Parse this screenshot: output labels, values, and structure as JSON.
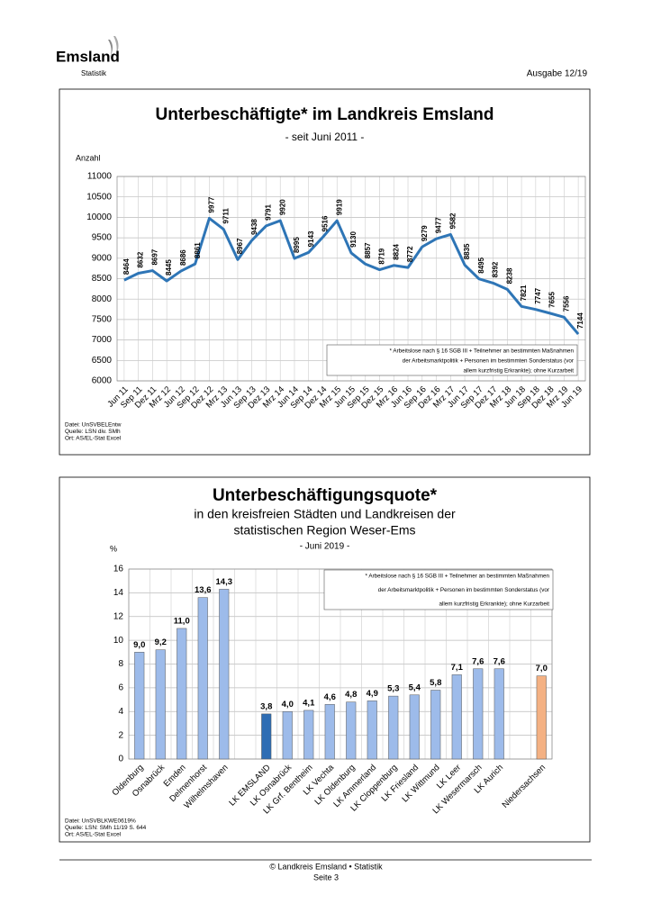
{
  "header": {
    "logo": "Emsland",
    "department": "Statistik",
    "issue": "Ausgabe 12/19"
  },
  "chart_data": [
    {
      "type": "line",
      "title": "Unterbeschäftigte* im Landkreis Emsland",
      "subtitle": [
        "- seit Juni 2011 -"
      ],
      "ylabel": "Anzahl",
      "categories": [
        "Jun 11",
        "Sep 11",
        "Dez 11",
        "Mrz 12",
        "Jun 12",
        "Sep 12",
        "Dez 12",
        "Mrz 13",
        "Jun 13",
        "Sep 13",
        "Dez 13",
        "Mrz 14",
        "Jun 14",
        "Sep 14",
        "Dez 14",
        "Mrz 15",
        "Jun 15",
        "Sep 15",
        "Dez 15",
        "Mrz 16",
        "Jun 16",
        "Sep 16",
        "Dez 16",
        "Mrz 17",
        "Jun 17",
        "Sep 17",
        "Dez 17",
        "Mrz 18",
        "Jun 18",
        "Sep 18",
        "Dez 18",
        "Mrz 19",
        "Jun 19"
      ],
      "values": [
        8464,
        8632,
        8697,
        8445,
        8686,
        8861,
        9977,
        9711,
        8967,
        9438,
        9791,
        9920,
        8995,
        9143,
        9516,
        9919,
        9130,
        8857,
        8719,
        8824,
        8772,
        9279,
        9477,
        9582,
        8835,
        8495,
        8392,
        8238,
        7821,
        7747,
        7655,
        7556,
        7144
      ],
      "color": "#2e75b6",
      "ylim": [
        6000,
        11000
      ],
      "yticks": [
        6000,
        6500,
        7000,
        7500,
        8000,
        8500,
        9000,
        9500,
        10000,
        10500,
        11000
      ],
      "grid": true,
      "note": [
        "* Arbeitslose nach § 16 SGB III + Teilnehmer an bestimmten Maßnahmen",
        "der Arbeitsmarktpolitik + Personen im bestimmten Sonderstatus (vor",
        "allem kurzfristig Erkrankte); ohne Kurzarbeit"
      ],
      "source": [
        "Datei: UnSVBELEntw",
        "Quelle: LSN div. SMh",
        "Ort: AS/EL-Stat Excel"
      ]
    },
    {
      "type": "bar",
      "title": "Unterbeschäftigungsquote*",
      "subtitle": [
        "in den kreisfreien Städten und Landkreisen der",
        "statistischen Region Weser-Ems",
        "- Juni 2019 -"
      ],
      "ylabel": "%",
      "categories": [
        "Oldenburg",
        "Osnabrück",
        "Emden",
        "Delmenhorst",
        "Wilhelmshaven",
        null,
        "LK EMSLAND",
        "LK Osnabrück",
        "LK Grf. Bentheim",
        "LK Vechta",
        "LK Oldenburg",
        "LK Ammerland",
        "LK Cloppenburg",
        "LK Friesland",
        "LK Wittmund",
        "LK Leer",
        "LK Wesermarsch",
        "LK Aurich",
        null,
        "Niedersachsen"
      ],
      "values": [
        9.0,
        9.2,
        11.0,
        13.6,
        14.3,
        null,
        3.8,
        4.0,
        4.1,
        4.6,
        4.8,
        4.9,
        5.3,
        5.4,
        5.8,
        7.1,
        7.6,
        7.6,
        null,
        7.0
      ],
      "value_labels": [
        "9,0",
        "9,2",
        "11,0",
        "13,6",
        "14,3",
        null,
        "3,8",
        "4,0",
        "4,1",
        "4,6",
        "4,8",
        "4,9",
        "5,3",
        "5,4",
        "5,8",
        "7,1",
        "7,6",
        "7,6",
        null,
        "7,0"
      ],
      "colors": [
        "#9dbbea",
        "#9dbbea",
        "#9dbbea",
        "#9dbbea",
        "#9dbbea",
        null,
        "#2e6db4",
        "#9dbbea",
        "#9dbbea",
        "#9dbbea",
        "#9dbbea",
        "#9dbbea",
        "#9dbbea",
        "#9dbbea",
        "#9dbbea",
        "#9dbbea",
        "#9dbbea",
        "#9dbbea",
        null,
        "#f4b183"
      ],
      "ylim": [
        0,
        16
      ],
      "yticks": [
        0,
        2,
        4,
        6,
        8,
        10,
        12,
        14,
        16
      ],
      "grid": true,
      "note": [
        "* Arbeitslose nach § 16 SGB III + Teilnehmer an bestimmten Maßnahmen",
        "der Arbeitsmarktpolitik + Personen im bestimmten Sonderstatus (vor",
        "allem kurzfristig Erkrankte); ohne Kurzarbeit"
      ],
      "source": [
        "Datei: UnSVBLKWE0619%",
        "Quelle: LSN: SMh 11/19 S. 644",
        "Ort: AS/EL-Stat Excel"
      ]
    }
  ],
  "footer": {
    "copyright": "© Landkreis Emsland • Statistik",
    "page": "Seite 3"
  }
}
